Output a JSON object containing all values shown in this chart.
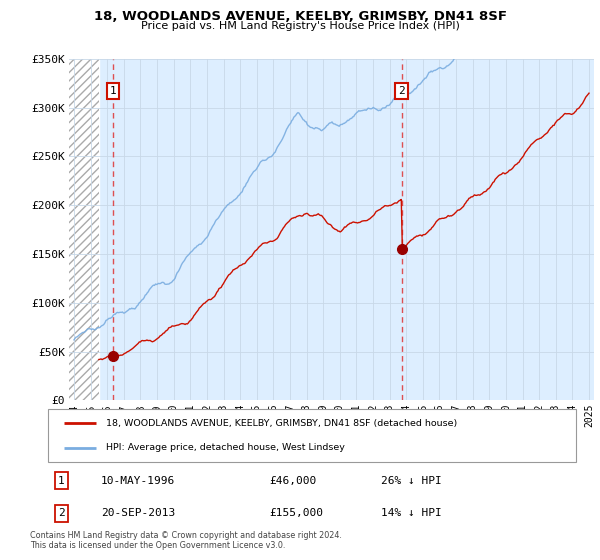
{
  "title": "18, WOODLANDS AVENUE, KEELBY, GRIMSBY, DN41 8SF",
  "subtitle": "Price paid vs. HM Land Registry's House Price Index (HPI)",
  "sale1_price": 46000,
  "sale1_year": 1996.36,
  "sale2_price": 155000,
  "sale2_year": 2013.72,
  "ylim": [
    0,
    350000
  ],
  "xlim_start": 1993.7,
  "xlim_end": 2025.3,
  "hpi_line_color": "#7aade0",
  "price_line_color": "#cc1100",
  "sale_dot_color": "#990000",
  "grid_color": "#c8d8e8",
  "bg_color": "#ddeeff",
  "legend_line1": "18, WOODLANDS AVENUE, KEELBY, GRIMSBY, DN41 8SF (detached house)",
  "legend_line2": "HPI: Average price, detached house, West Lindsey",
  "footnote1_num": "1",
  "footnote1_date": "10-MAY-1996",
  "footnote1_price": "£46,000",
  "footnote1_pct": "26% ↓ HPI",
  "footnote2_num": "2",
  "footnote2_date": "20-SEP-2013",
  "footnote2_price": "£155,000",
  "footnote2_pct": "14% ↓ HPI",
  "copyright": "Contains HM Land Registry data © Crown copyright and database right 2024.\nThis data is licensed under the Open Government Licence v3.0.",
  "hatch_end": 1995.5
}
